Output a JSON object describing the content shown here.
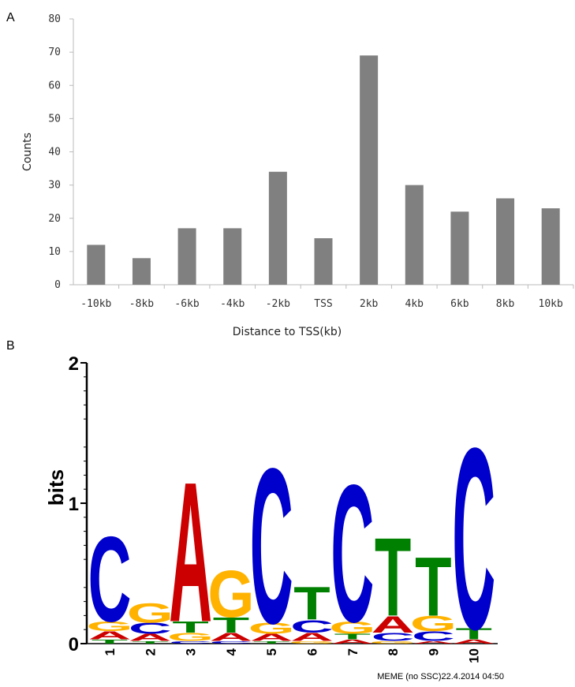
{
  "panels": {
    "a_label": "A",
    "b_label": "B"
  },
  "chart_data": [
    {
      "type": "bar",
      "categories": [
        "-10kb",
        "-8kb",
        "-6kb",
        "-4kb",
        "-2kb",
        "TSS",
        "2kb",
        "4kb",
        "6kb",
        "8kb",
        "10kb"
      ],
      "values": [
        12,
        8,
        17,
        17,
        34,
        14,
        69,
        30,
        22,
        26,
        23
      ],
      "title": "",
      "xlabel": "Distance to TSS(kb)",
      "ylabel": "Counts",
      "ylim": [
        0,
        80
      ],
      "yticks": [
        0,
        10,
        20,
        30,
        40,
        50,
        60,
        70,
        80
      ],
      "grid": false,
      "bar_color": "#808080"
    },
    {
      "type": "sequence_logo",
      "title": "",
      "ylabel": "bits",
      "ylim": [
        0,
        2
      ],
      "yticks": [
        0,
        1,
        2
      ],
      "positions": [
        "1",
        "2",
        "3",
        "4",
        "5",
        "6",
        "7",
        "8",
        "9",
        "10"
      ],
      "colors": {
        "A": "#cc0000",
        "C": "#0000cc",
        "G": "#ffb300",
        "T": "#008000"
      },
      "stacks": [
        [
          {
            "letter": "T",
            "height": 0.03
          },
          {
            "letter": "A",
            "height": 0.06
          },
          {
            "letter": "G",
            "height": 0.07
          },
          {
            "letter": "C",
            "height": 0.62
          }
        ],
        [
          {
            "letter": "T",
            "height": 0.02
          },
          {
            "letter": "A",
            "height": 0.05
          },
          {
            "letter": "C",
            "height": 0.08
          },
          {
            "letter": "G",
            "height": 0.14
          }
        ],
        [
          {
            "letter": "C",
            "height": 0.02
          },
          {
            "letter": "G",
            "height": 0.06
          },
          {
            "letter": "T",
            "height": 0.08
          },
          {
            "letter": "A",
            "height": 1.02
          }
        ],
        [
          {
            "letter": "C",
            "height": 0.02
          },
          {
            "letter": "A",
            "height": 0.06
          },
          {
            "letter": "T",
            "height": 0.11
          },
          {
            "letter": "G",
            "height": 0.34
          }
        ],
        [
          {
            "letter": "T",
            "height": 0.02
          },
          {
            "letter": "A",
            "height": 0.05
          },
          {
            "letter": "G",
            "height": 0.08
          },
          {
            "letter": "C",
            "height": 1.13
          }
        ],
        [
          {
            "letter": "G",
            "height": 0.02
          },
          {
            "letter": "A",
            "height": 0.06
          },
          {
            "letter": "C",
            "height": 0.09
          },
          {
            "letter": "T",
            "height": 0.24
          }
        ],
        [
          {
            "letter": "A",
            "height": 0.03
          },
          {
            "letter": "T",
            "height": 0.04
          },
          {
            "letter": "G",
            "height": 0.09
          },
          {
            "letter": "C",
            "height": 1.0
          }
        ],
        [
          {
            "letter": "G",
            "height": 0.02
          },
          {
            "letter": "C",
            "height": 0.06
          },
          {
            "letter": "A",
            "height": 0.12
          },
          {
            "letter": "T",
            "height": 0.57
          }
        ],
        [
          {
            "letter": "A",
            "height": 0.02
          },
          {
            "letter": "C",
            "height": 0.07
          },
          {
            "letter": "G",
            "height": 0.11
          },
          {
            "letter": "T",
            "height": 0.43
          }
        ],
        [
          {
            "letter": "A",
            "height": 0.03
          },
          {
            "letter": "T",
            "height": 0.08
          },
          {
            "letter": "C",
            "height": 1.32
          }
        ]
      ]
    }
  ],
  "footer": "MEME (no SSC)22.4.2014 04:50"
}
